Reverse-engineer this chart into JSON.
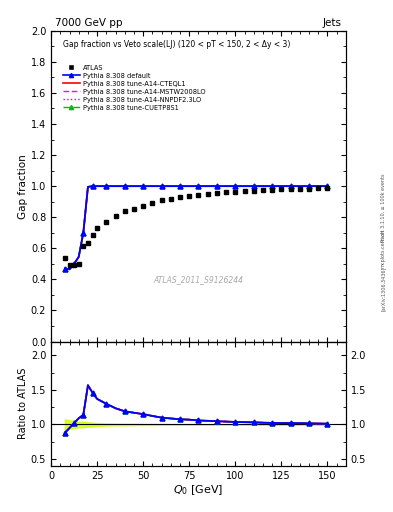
{
  "title_left": "7000 GeV pp",
  "title_right": "Jets",
  "plot_title": "Gap fraction vs Veto scale(LJ) (120 < pT < 150, 2 < Δy < 3)",
  "xlabel": "Q_{0} [GeV]",
  "ylabel_main": "Gap fraction",
  "ylabel_ratio": "Ratio to ATLAS",
  "watermark": "ATLAS_2011_S9126244",
  "right_label_top": "Rivet 3.1.10, ≥ 100k events",
  "right_label_bottom": "[arXiv:1306.3436]",
  "mcplots_label": "mcplots.cern.ch",
  "atlas_x": [
    7.5,
    10,
    12.5,
    15,
    17.5,
    20,
    22.5,
    25,
    30,
    35,
    40,
    45,
    50,
    55,
    60,
    65,
    70,
    75,
    80,
    85,
    90,
    95,
    100,
    105,
    110,
    115,
    120,
    125,
    130,
    135,
    140,
    145,
    150
  ],
  "atlas_y": [
    0.535,
    0.49,
    0.49,
    0.5,
    0.615,
    0.635,
    0.685,
    0.73,
    0.77,
    0.81,
    0.84,
    0.855,
    0.87,
    0.89,
    0.91,
    0.92,
    0.93,
    0.935,
    0.945,
    0.95,
    0.955,
    0.96,
    0.965,
    0.968,
    0.97,
    0.975,
    0.978,
    0.98,
    0.981,
    0.982,
    0.984,
    0.987,
    0.989
  ],
  "atlas_yerr": [
    0.04,
    0.03,
    0.025,
    0.02,
    0.025,
    0.02,
    0.018,
    0.015,
    0.012,
    0.01,
    0.009,
    0.008,
    0.007,
    0.007,
    0.006,
    0.005,
    0.005,
    0.005,
    0.004,
    0.004,
    0.004,
    0.004,
    0.003,
    0.003,
    0.003,
    0.003,
    0.003,
    0.002,
    0.002,
    0.002,
    0.002,
    0.002,
    0.002
  ],
  "mc_x": [
    7.5,
    10,
    12.5,
    15,
    17.5,
    20,
    22.5,
    25,
    30,
    35,
    40,
    45,
    50,
    55,
    60,
    65,
    70,
    75,
    80,
    85,
    90,
    95,
    100,
    105,
    110,
    115,
    120,
    125,
    130,
    135,
    140,
    145,
    150
  ],
  "mc_default_y": [
    0.47,
    0.465,
    0.5,
    0.545,
    0.7,
    0.995,
    1.0,
    1.0,
    1.0,
    1.0,
    1.0,
    1.0,
    1.0,
    1.0,
    1.0,
    1.0,
    1.0,
    1.0,
    1.0,
    1.0,
    1.0,
    1.0,
    1.0,
    1.0,
    1.0,
    1.0,
    1.0,
    1.0,
    1.0,
    1.0,
    1.0,
    1.0,
    1.0
  ],
  "mc_cteql1_y": [
    0.47,
    0.465,
    0.5,
    0.545,
    0.7,
    0.995,
    1.0,
    1.0,
    1.0,
    1.0,
    1.0,
    1.0,
    1.0,
    1.0,
    1.0,
    1.0,
    1.0,
    1.0,
    1.0,
    1.0,
    1.0,
    1.0,
    1.0,
    1.0,
    1.0,
    1.0,
    1.0,
    1.0,
    1.0,
    1.0,
    1.0,
    1.0,
    1.0
  ],
  "mc_mstw_y": [
    0.47,
    0.465,
    0.5,
    0.545,
    0.7,
    0.995,
    1.0,
    1.0,
    1.0,
    1.0,
    1.0,
    1.0,
    1.0,
    1.0,
    1.0,
    1.0,
    1.0,
    1.0,
    1.0,
    1.0,
    1.0,
    1.0,
    1.0,
    1.0,
    1.0,
    1.0,
    1.0,
    1.0,
    1.0,
    1.0,
    1.0,
    1.0,
    1.0
  ],
  "mc_nnpdf_y": [
    0.47,
    0.465,
    0.5,
    0.545,
    0.7,
    0.995,
    1.0,
    1.0,
    1.0,
    1.0,
    1.0,
    1.0,
    1.0,
    1.0,
    1.0,
    1.0,
    1.0,
    1.0,
    1.0,
    1.0,
    1.0,
    1.0,
    1.0,
    1.0,
    1.0,
    1.0,
    1.0,
    1.0,
    1.0,
    1.0,
    1.0,
    1.0,
    1.0
  ],
  "mc_cuetp_y": [
    0.47,
    0.465,
    0.5,
    0.545,
    0.7,
    0.995,
    1.0,
    1.0,
    1.0,
    1.0,
    1.0,
    1.0,
    1.0,
    1.0,
    1.0,
    1.0,
    1.0,
    1.0,
    1.0,
    1.0,
    1.0,
    1.0,
    1.0,
    1.0,
    1.0,
    1.0,
    1.0,
    1.0,
    1.0,
    1.0,
    1.0,
    1.0,
    1.0
  ],
  "color_default": "#0000ff",
  "color_cteql1": "#ff0000",
  "color_mstw": "#ff00ff",
  "color_nnpdf": "#dd00dd",
  "color_cuetp": "#00bb00",
  "color_atlas": "#000000",
  "ylim_main": [
    0.0,
    2.0
  ],
  "ylim_ratio": [
    0.4,
    2.2
  ],
  "xlim": [
    0,
    160
  ],
  "yticks_main": [
    0.0,
    0.2,
    0.4,
    0.6,
    0.8,
    1.0,
    1.2,
    1.4,
    1.6,
    1.8,
    2.0
  ],
  "yticks_ratio": [
    0.5,
    1.0,
    1.5,
    2.0
  ],
  "xticks": [
    0,
    25,
    50,
    75,
    100,
    125,
    150
  ],
  "background_color": "#ffffff"
}
